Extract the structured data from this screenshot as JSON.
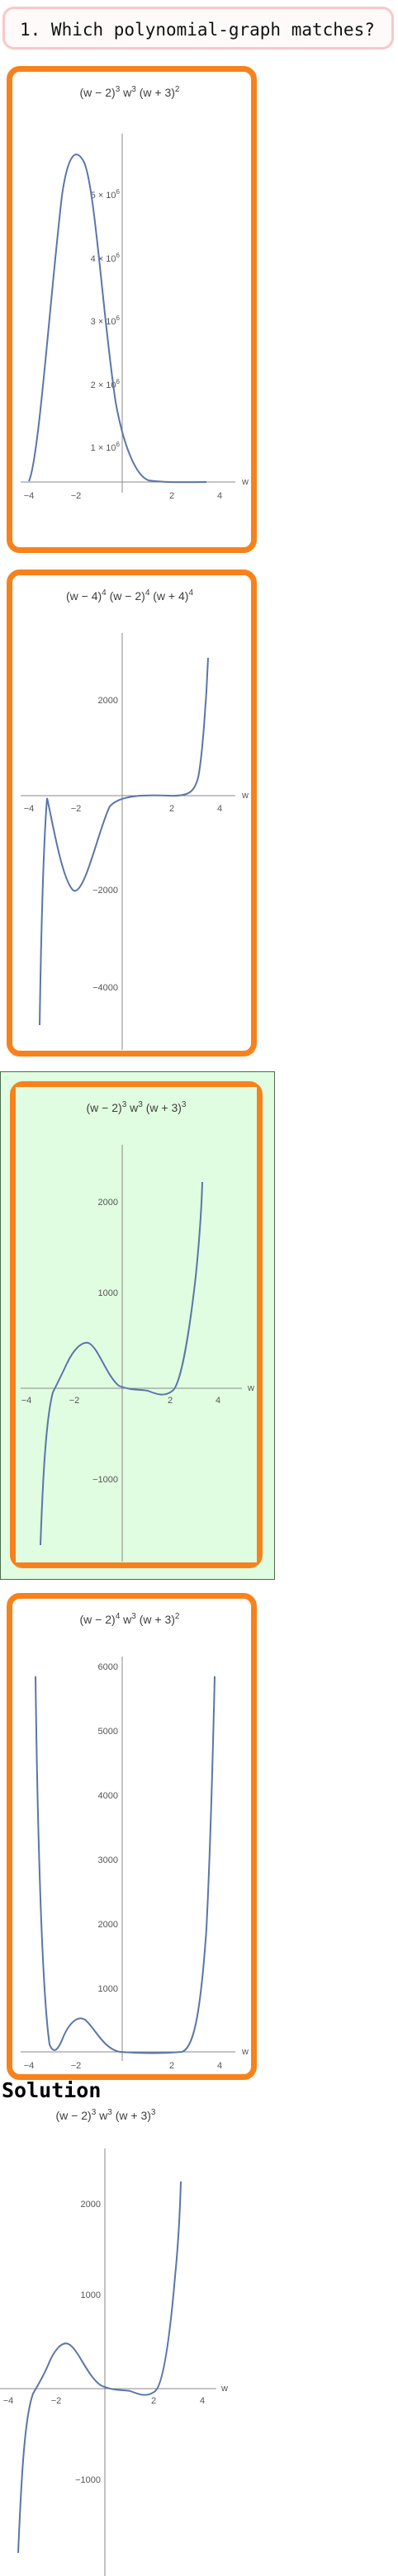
{
  "question": {
    "text": "1. Which polynomial-graph matches?"
  },
  "options": [
    {
      "title_html": "(w − 2)<tspan baseline-shift='super' font-size='10'>3</tspan> w<tspan baseline-shift='super' font-size='10'>3</tspan> (w + 3)<tspan baseline-shift='super' font-size='10'>2</tspan>",
      "title": "(w − 2)^3 w^3 (w + 3)^2",
      "correct": false,
      "x_ticks": [
        "−4",
        "−2",
        "2",
        "4"
      ],
      "y_ticks": [
        "1 × 10^6",
        "2 × 10^6",
        "3 × 10^6",
        "4 × 10^6",
        "5 × 10^6"
      ],
      "x_label": "w"
    },
    {
      "title": "(w − 4)^4 (w − 2)^4 (w + 4)^4",
      "correct": false,
      "x_ticks": [
        "−4",
        "−2",
        "2",
        "4"
      ],
      "y_ticks": [
        "2000",
        "−2000",
        "−4000"
      ],
      "x_label": "w"
    },
    {
      "title": "(w − 2)^3 w^3 (w + 3)^3",
      "correct": true,
      "x_ticks": [
        "−4",
        "−2",
        "2",
        "4"
      ],
      "y_ticks": [
        "2000",
        "1000",
        "−1000"
      ],
      "x_label": "w"
    },
    {
      "title": "(w − 2)^4 w^3 (w + 3)^2",
      "correct": false,
      "x_ticks": [
        "−4",
        "−2",
        "2",
        "4"
      ],
      "y_ticks": [
        "6000",
        "5000",
        "4000",
        "3000",
        "2000",
        "1000"
      ],
      "x_label": "w"
    }
  ],
  "solution": {
    "label": "Solution",
    "title": "(w − 2)^3 w^3 (w + 3)^3",
    "x_ticks": [
      "−4",
      "−2",
      "2",
      "4"
    ],
    "y_ticks": [
      "2000",
      "1000",
      "−1000"
    ],
    "x_label": "w"
  },
  "colors": {
    "card_border": "#f7821b",
    "correct_bg": "#e1fde1",
    "curve": "#5a76a8",
    "question_border": "#f7c8c8"
  }
}
